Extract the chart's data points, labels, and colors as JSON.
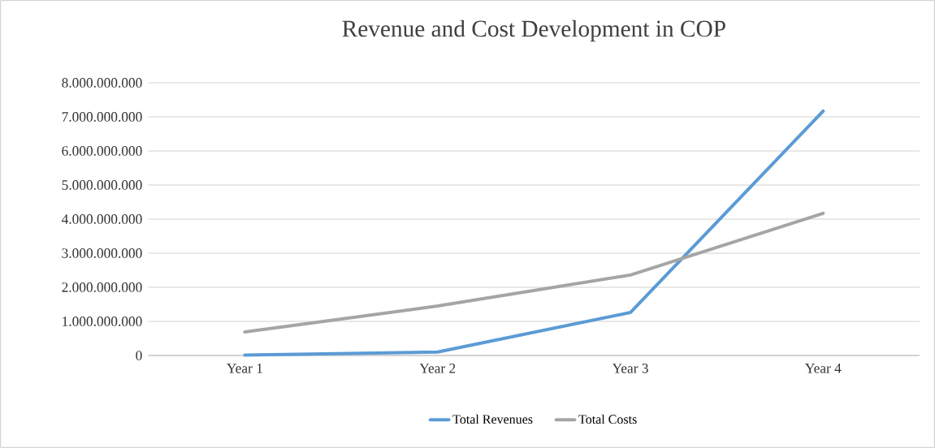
{
  "chart_data": {
    "type": "line",
    "title": "Revenue and Cost Development in COP",
    "categories": [
      "Year 1",
      "Year 2",
      "Year 3",
      "Year 4"
    ],
    "series": [
      {
        "name": "Total Revenues",
        "color": "#5b9bd5",
        "values": [
          10000000,
          100000000,
          1260000000,
          7170000000
        ]
      },
      {
        "name": "Total Costs",
        "color": "#a5a5a5",
        "values": [
          690000000,
          1450000000,
          2360000000,
          4170000000
        ]
      }
    ],
    "ylim": [
      0,
      8000000000
    ],
    "yticks": [
      0,
      {
        "value": 1000000000,
        "label": "1.000.000.000"
      },
      {
        "value": 2000000000,
        "label": "2.000.000.000"
      },
      {
        "value": 3000000000,
        "label": "3.000.000.000"
      },
      {
        "value": 4000000000,
        "label": "4.000.000.000"
      },
      {
        "value": 5000000000,
        "label": "5.000.000.000"
      },
      {
        "value": 6000000000,
        "label": "6.000.000.000"
      },
      {
        "value": 7000000000,
        "label": "7.000.000.000"
      },
      {
        "value": 8000000000,
        "label": "8.000.000.000"
      }
    ],
    "grid": "y",
    "legend": "bottom",
    "marker": "none",
    "line_style": "solid"
  }
}
